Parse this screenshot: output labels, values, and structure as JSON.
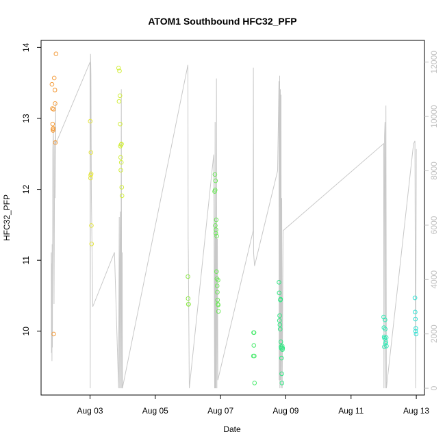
{
  "chart_data": {
    "type": "scatter",
    "title": "ATOM1 Southbound HFC32_PFP",
    "xlabel": "Date",
    "ylabel": "HFC32_PFP",
    "xlim": [
      "2016-08-01T12:00",
      "2016-08-13T06:00"
    ],
    "ylim": [
      9.1,
      14.1
    ],
    "y2lim": [
      -250,
      12800
    ],
    "x_ticks": [
      "2016-08-03",
      "2016-08-05",
      "2016-08-07",
      "2016-08-09",
      "2016-08-11",
      "2016-08-13"
    ],
    "x_tick_labels": [
      "Aug 03",
      "Aug 05",
      "Aug 07",
      "Aug 09",
      "Aug 11",
      "Aug 13"
    ],
    "y_ticks": [
      10,
      11,
      12,
      13,
      14
    ],
    "y_tick_labels": [
      "10",
      "11",
      "12",
      "13",
      "14"
    ],
    "y2_ticks": [
      0,
      2000,
      4000,
      6000,
      8000,
      10000,
      12000
    ],
    "y2_tick_labels": [
      "0",
      "2000",
      "4000",
      "6000",
      "8000",
      "10000",
      "12000"
    ],
    "grid": false,
    "colors": {
      "altitude_line": "#c8c8c8",
      "right_axis": "#c0c0c0",
      "frame": "#000000"
    },
    "series": [
      {
        "color": "#f39c3c",
        "points": [
          [
            "2016-08-01T20:00",
            13.48
          ],
          [
            "2016-08-01T20:20",
            13.14
          ],
          [
            "2016-08-01T20:30",
            12.92
          ],
          [
            "2016-08-01T20:40",
            12.85
          ],
          [
            "2016-08-01T20:50",
            12.83
          ],
          [
            "2016-08-01T21:00",
            12.86
          ],
          [
            "2016-08-01T21:10",
            13.13
          ],
          [
            "2016-08-01T21:20",
            9.96
          ],
          [
            "2016-08-01T21:40",
            13.57
          ],
          [
            "2016-08-01T22:10",
            13.4
          ],
          [
            "2016-08-01T22:20",
            13.21
          ],
          [
            "2016-08-01T22:30",
            12.66
          ],
          [
            "2016-08-01T23:00",
            13.91
          ]
        ]
      },
      {
        "color": "#e6e640",
        "points": [
          [
            "2016-08-03T00:10",
            12.96
          ],
          [
            "2016-08-03T00:20",
            12.16
          ],
          [
            "2016-08-03T00:30",
            12.2
          ],
          [
            "2016-08-03T00:40",
            12.52
          ],
          [
            "2016-08-03T00:50",
            12.22
          ],
          [
            "2016-08-03T01:00",
            11.49
          ],
          [
            "2016-08-03T01:10",
            11.23
          ]
        ]
      },
      {
        "color": "#d2ee3c",
        "points": [
          [
            "2016-08-03T21:00",
            13.71
          ],
          [
            "2016-08-03T21:20",
            13.24
          ],
          [
            "2016-08-03T21:40",
            13.67
          ],
          [
            "2016-08-03T22:00",
            13.32
          ],
          [
            "2016-08-03T22:10",
            12.92
          ],
          [
            "2016-08-03T22:20",
            12.61
          ],
          [
            "2016-08-03T22:30",
            12.45
          ],
          [
            "2016-08-03T22:40",
            12.27
          ],
          [
            "2016-08-03T22:50",
            12.63
          ],
          [
            "2016-08-03T23:00",
            12.38
          ],
          [
            "2016-08-03T23:10",
            12.64
          ],
          [
            "2016-08-03T23:20",
            12.03
          ],
          [
            "2016-08-03T23:30",
            11.91
          ]
        ]
      },
      {
        "color": "#8ee84a",
        "points": [
          [
            "2016-08-06T00:00",
            10.77
          ],
          [
            "2016-08-06T00:10",
            10.46
          ],
          [
            "2016-08-06T00:20",
            10.38
          ],
          [
            "2016-08-06T00:30",
            10.38
          ]
        ]
      },
      {
        "color": "#6ee85a",
        "points": [
          [
            "2016-08-06T19:40",
            11.97
          ],
          [
            "2016-08-06T19:50",
            12.21
          ],
          [
            "2016-08-06T20:00",
            11.99
          ],
          [
            "2016-08-06T20:10",
            11.49
          ],
          [
            "2016-08-06T20:20",
            12.12
          ],
          [
            "2016-08-06T20:30",
            11.38
          ],
          [
            "2016-08-06T20:40",
            11.43
          ],
          [
            "2016-08-06T20:50",
            11.57
          ],
          [
            "2016-08-06T21:00",
            10.84
          ],
          [
            "2016-08-06T21:10",
            11.34
          ],
          [
            "2016-08-06T21:20",
            10.74
          ],
          [
            "2016-08-06T21:30",
            10.64
          ],
          [
            "2016-08-06T21:40",
            10.55
          ],
          [
            "2016-08-06T21:50",
            10.44
          ],
          [
            "2016-08-06T22:00",
            10.38
          ],
          [
            "2016-08-06T22:10",
            10.72
          ],
          [
            "2016-08-06T22:20",
            10.37
          ],
          [
            "2016-08-06T22:30",
            10.28
          ]
        ]
      },
      {
        "color": "#4aea6e",
        "points": [
          [
            "2016-08-08T00:10",
            9.65
          ],
          [
            "2016-08-08T00:20",
            9.98
          ],
          [
            "2016-08-08T00:30",
            9.8
          ],
          [
            "2016-08-08T00:40",
            9.98
          ],
          [
            "2016-08-08T00:50",
            9.65
          ],
          [
            "2016-08-08T01:00",
            9.27
          ]
        ]
      },
      {
        "color": "#2ee882",
        "points": [
          [
            "2016-08-08T19:00",
            10.69
          ],
          [
            "2016-08-08T19:10",
            10.54
          ],
          [
            "2016-08-08T19:20",
            10.15
          ],
          [
            "2016-08-08T19:30",
            10.22
          ],
          [
            "2016-08-08T19:40",
            10.09
          ],
          [
            "2016-08-08T19:50",
            10.03
          ],
          [
            "2016-08-08T20:00",
            10.44
          ],
          [
            "2016-08-08T20:10",
            10.45
          ],
          [
            "2016-08-08T20:20",
            9.85
          ],
          [
            "2016-08-08T20:30",
            9.78
          ],
          [
            "2016-08-08T20:40",
            9.76
          ],
          [
            "2016-08-08T20:50",
            9.62
          ],
          [
            "2016-08-08T21:00",
            9.4
          ],
          [
            "2016-08-08T21:10",
            9.27
          ],
          [
            "2016-08-08T21:20",
            9.79
          ],
          [
            "2016-08-08T21:30",
            9.74
          ],
          [
            "2016-08-08T21:40",
            9.76
          ]
        ]
      },
      {
        "color": "#30e8b4",
        "points": [
          [
            "2016-08-12T00:00",
            10.2
          ],
          [
            "2016-08-12T00:10",
            10.05
          ],
          [
            "2016-08-12T00:20",
            9.92
          ],
          [
            "2016-08-12T00:30",
            9.78
          ],
          [
            "2016-08-12T00:40",
            9.9
          ],
          [
            "2016-08-12T01:00",
            10.16
          ],
          [
            "2016-08-12T01:10",
            10.03
          ],
          [
            "2016-08-12T01:20",
            9.83
          ],
          [
            "2016-08-12T01:40",
            9.85
          ],
          [
            "2016-08-12T01:50",
            9.91
          ],
          [
            "2016-08-12T02:00",
            9.79
          ]
        ]
      },
      {
        "color": "#30e0d2",
        "points": [
          [
            "2016-08-12T23:00",
            10.47
          ],
          [
            "2016-08-12T23:10",
            10.27
          ],
          [
            "2016-08-12T23:20",
            10.17
          ],
          [
            "2016-08-12T23:30",
            10.0
          ],
          [
            "2016-08-12T23:40",
            10.04
          ],
          [
            "2016-08-12T23:50",
            9.96
          ]
        ]
      }
    ],
    "altitude_line": {
      "axis": "right",
      "points": [
        [
          "2016-08-01T19:30",
          5000
        ],
        [
          "2016-08-01T19:40",
          1300
        ],
        [
          "2016-08-01T19:50",
          4600
        ],
        [
          "2016-08-01T20:00",
          1000
        ],
        [
          "2016-08-01T20:10",
          5300
        ],
        [
          "2016-08-01T20:20",
          1500
        ],
        [
          "2016-08-01T20:40",
          8800
        ],
        [
          "2016-08-01T21:00",
          9500
        ],
        [
          "2016-08-01T21:10",
          7800
        ],
        [
          "2016-08-01T21:30",
          3100
        ],
        [
          "2016-08-01T22:00",
          9100
        ],
        [
          "2016-08-01T22:20",
          7000
        ],
        [
          "2016-08-01T22:40",
          10500
        ],
        [
          "2016-08-01T22:50",
          9000
        ],
        [
          "2016-08-03T00:00",
          12000
        ],
        [
          "2016-08-03T00:10",
          0
        ],
        [
          "2016-08-03T00:20",
          12300
        ],
        [
          "2016-08-03T00:30",
          12000
        ],
        [
          "2016-08-03T00:40",
          11500
        ],
        [
          "2016-08-03T01:00",
          7000
        ],
        [
          "2016-08-03T02:00",
          3000
        ],
        [
          "2016-08-03T18:00",
          5000
        ],
        [
          "2016-08-03T21:00",
          0
        ],
        [
          "2016-08-03T21:30",
          6300
        ],
        [
          "2016-08-03T21:50",
          0
        ],
        [
          "2016-08-03T22:00",
          4000
        ],
        [
          "2016-08-03T22:20",
          6500
        ],
        [
          "2016-08-03T22:40",
          0
        ],
        [
          "2016-08-03T23:00",
          11000
        ],
        [
          "2016-08-03T23:20",
          0
        ],
        [
          "2016-08-03T23:40",
          5000
        ],
        [
          "2016-08-03T23:50",
          0
        ],
        [
          "2016-08-06T00:00",
          11900
        ],
        [
          "2016-08-06T00:10",
          5500
        ],
        [
          "2016-08-06T00:20",
          5000
        ],
        [
          "2016-08-06T01:00",
          0
        ],
        [
          "2016-08-06T19:00",
          8600
        ],
        [
          "2016-08-06T19:40",
          0
        ],
        [
          "2016-08-06T20:00",
          9800
        ],
        [
          "2016-08-06T20:10",
          0
        ],
        [
          "2016-08-06T20:30",
          6000
        ],
        [
          "2016-08-06T20:40",
          0
        ],
        [
          "2016-08-06T21:00",
          11400
        ],
        [
          "2016-08-06T21:20",
          0
        ],
        [
          "2016-08-06T21:40",
          5500
        ],
        [
          "2016-08-06T22:00",
          300
        ],
        [
          "2016-08-08T00:00",
          5800
        ],
        [
          "2016-08-08T00:10",
          11800
        ],
        [
          "2016-08-08T00:20",
          5000
        ],
        [
          "2016-08-08T01:00",
          4500
        ],
        [
          "2016-08-08T18:00",
          8000
        ],
        [
          "2016-08-08T19:00",
          11300
        ],
        [
          "2016-08-08T19:10",
          300
        ],
        [
          "2016-08-08T19:30",
          11500
        ],
        [
          "2016-08-08T19:40",
          0
        ],
        [
          "2016-08-08T20:00",
          11000
        ],
        [
          "2016-08-08T20:10",
          300
        ],
        [
          "2016-08-08T20:30",
          10800
        ],
        [
          "2016-08-08T20:40",
          0
        ],
        [
          "2016-08-08T21:00",
          7000
        ],
        [
          "2016-08-08T21:20",
          0
        ],
        [
          "2016-08-08T22:00",
          5800
        ],
        [
          "2016-08-12T00:00",
          9000
        ],
        [
          "2016-08-12T00:10",
          0
        ],
        [
          "2016-08-12T00:40",
          9300
        ],
        [
          "2016-08-12T01:00",
          9800
        ],
        [
          "2016-08-12T01:20",
          0
        ],
        [
          "2016-08-12T01:40",
          10400
        ],
        [
          "2016-08-12T02:00",
          0
        ],
        [
          "2016-08-12T22:00",
          9000
        ],
        [
          "2016-08-12T23:00",
          9100
        ],
        [
          "2016-08-12T23:30",
          0
        ],
        [
          "2016-08-13T00:00",
          8800
        ]
      ]
    }
  }
}
